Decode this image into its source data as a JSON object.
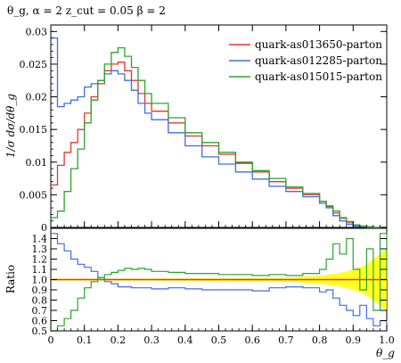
{
  "chart_data": {
    "type": "line",
    "title": "θ_g, α = 2 z_cut = 0.05 β = 2",
    "xlabel": "θ_g",
    "ylabel": "1/σ dσ/dθ_g",
    "ratio_ylabel": "Ratio",
    "xlim": [
      0,
      1
    ],
    "ylim": [
      0,
      0.031
    ],
    "ratio_ylim": [
      0.5,
      1.5
    ],
    "x_ticks": [
      "0",
      "0.1",
      "0.2",
      "0.3",
      "0.4",
      "0.5",
      "0.6",
      "0.7",
      "0.8",
      "0.9",
      "1.0"
    ],
    "y_ticks": [
      "0",
      "0.005",
      "0.01",
      "0.015",
      "0.02",
      "0.025",
      "0.03"
    ],
    "ratio_ticks": [
      "0.5",
      "0.6",
      "0.7",
      "0.8",
      "0.9",
      "1.0",
      "1.1",
      "1.2",
      "1.3",
      "1.4"
    ],
    "legend_position": "top-right",
    "grid": false,
    "x": [
      0.0,
      0.02,
      0.04,
      0.06,
      0.08,
      0.1,
      0.12,
      0.14,
      0.16,
      0.18,
      0.2,
      0.22,
      0.24,
      0.26,
      0.28,
      0.3,
      0.35,
      0.4,
      0.45,
      0.5,
      0.55,
      0.6,
      0.65,
      0.7,
      0.75,
      0.8,
      0.82,
      0.84,
      0.86,
      0.88,
      0.9,
      0.92,
      0.94,
      0.96,
      0.98,
      1.0
    ],
    "series": [
      {
        "name": "quark-as013650-parton",
        "color": "#e8352b",
        "values": [
          0.0065,
          0.0095,
          0.0115,
          0.013,
          0.015,
          0.0175,
          0.02,
          0.022,
          0.024,
          0.025,
          0.0253,
          0.024,
          0.0225,
          0.0205,
          0.019,
          0.0178,
          0.016,
          0.014,
          0.0125,
          0.0112,
          0.0098,
          0.0085,
          0.007,
          0.006,
          0.005,
          0.004,
          0.0032,
          0.0022,
          0.0014,
          0.0008,
          0.0004,
          0.0002,
          0.0001,
          0.0,
          0.0,
          0.0
        ]
      },
      {
        "name": "quark-as012285-parton",
        "color": "#3d6fe0",
        "values": [
          0.029,
          0.0185,
          0.019,
          0.0195,
          0.02,
          0.0215,
          0.022,
          0.0225,
          0.0235,
          0.024,
          0.0235,
          0.0225,
          0.021,
          0.019,
          0.0175,
          0.0165,
          0.0145,
          0.0125,
          0.0108,
          0.0097,
          0.0085,
          0.0074,
          0.0063,
          0.0055,
          0.0047,
          0.0037,
          0.003,
          0.0018,
          0.001,
          0.0005,
          0.0002,
          0.0001,
          0.0,
          0.0,
          0.0,
          0.0
        ]
      },
      {
        "name": "quark-as015015-parton",
        "color": "#2aa52c",
        "values": [
          0.0015,
          0.0025,
          0.0055,
          0.009,
          0.012,
          0.016,
          0.0195,
          0.0225,
          0.025,
          0.0268,
          0.0275,
          0.0262,
          0.0245,
          0.0225,
          0.0205,
          0.019,
          0.0168,
          0.0145,
          0.013,
          0.0115,
          0.01,
          0.0087,
          0.0075,
          0.0062,
          0.0052,
          0.004,
          0.0033,
          0.0025,
          0.0015,
          0.0009,
          0.0004,
          0.0002,
          0.0001,
          0.0,
          0.0,
          0.0
        ]
      }
    ],
    "ratio_series": [
      {
        "name": "quark-as013650-parton",
        "color": "#e8352b",
        "values": [
          1.0,
          1.0,
          1.0,
          1.0,
          1.0,
          1.0,
          1.0,
          1.0,
          1.0,
          1.0,
          1.0,
          1.0,
          1.0,
          1.0,
          1.0,
          1.0,
          1.0,
          1.0,
          1.0,
          1.0,
          1.0,
          1.0,
          1.0,
          1.0,
          1.0,
          1.0,
          1.0,
          1.0,
          1.0,
          1.0,
          1.0,
          1.0,
          1.0,
          1.0,
          1.0,
          1.0
        ]
      },
      {
        "name": "quark-as012285-parton",
        "color": "#3d6fe0",
        "values": [
          1.45,
          1.35,
          1.28,
          1.2,
          1.15,
          1.12,
          1.08,
          1.02,
          0.98,
          0.96,
          0.93,
          0.93,
          0.92,
          0.92,
          0.92,
          0.91,
          0.92,
          0.91,
          0.9,
          0.9,
          0.9,
          0.89,
          0.92,
          0.93,
          0.92,
          0.88,
          0.9,
          0.82,
          0.75,
          0.7,
          0.65,
          0.75,
          0.62,
          0.55,
          0.6,
          0.5
        ]
      },
      {
        "name": "quark-as015015-parton",
        "color": "#2aa52c",
        "values": [
          0.5,
          0.55,
          0.62,
          0.7,
          0.82,
          0.92,
          0.98,
          1.02,
          1.05,
          1.07,
          1.09,
          1.11,
          1.1,
          1.11,
          1.1,
          1.08,
          1.07,
          1.06,
          1.06,
          1.05,
          1.05,
          1.04,
          1.05,
          1.04,
          1.06,
          1.1,
          1.2,
          1.35,
          1.25,
          1.4,
          1.1,
          0.9,
          1.3,
          0.7,
          1.45,
          1.0
        ]
      }
    ],
    "uncertainty_band": {
      "color": "#ffff00",
      "x": [
        0.0,
        0.2,
        0.4,
        0.6,
        0.7,
        0.75,
        0.8,
        0.85,
        0.88,
        0.9,
        0.92,
        0.94,
        0.96,
        0.98,
        1.0
      ],
      "half_width": [
        0.01,
        0.01,
        0.012,
        0.015,
        0.02,
        0.03,
        0.04,
        0.06,
        0.08,
        0.1,
        0.12,
        0.15,
        0.2,
        0.25,
        0.3
      ]
    }
  }
}
